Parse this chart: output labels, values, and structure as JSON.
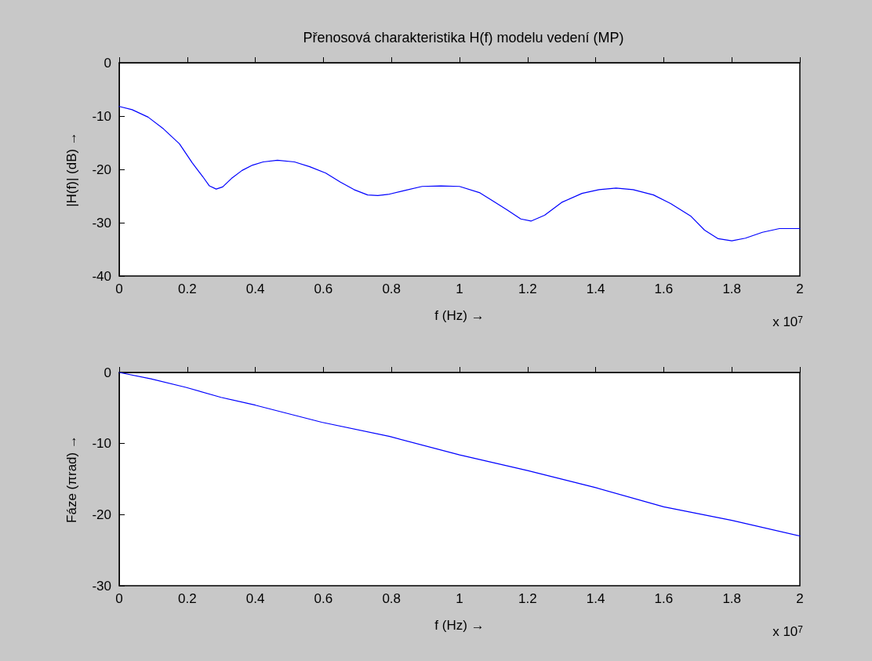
{
  "chart_data": [
    {
      "type": "line",
      "title": "Přenosová charakteristika H(f) modelu vedení (MP)",
      "xlabel": "f (Hz) →",
      "ylabel": "|H(f)| (dB) →",
      "annotations": [
        "x 10$^{7}$"
      ],
      "xlim": [
        0,
        2
      ],
      "xticks": [
        0,
        0.2,
        0.4,
        0.6,
        0.8,
        1,
        1.2,
        1.4,
        1.6,
        1.8,
        2
      ],
      "ylim": [
        -40,
        0
      ],
      "yticks": [
        -40,
        -30,
        -20,
        -10,
        0
      ],
      "marker": "none",
      "line_style": "solid",
      "series": [
        {
          "color": "#0000ff",
          "x": [
            0,
            0.038,
            0.085,
            0.13,
            0.177,
            0.215,
            0.246,
            0.265,
            0.285,
            0.304,
            0.33,
            0.361,
            0.392,
            0.423,
            0.465,
            0.515,
            0.56,
            0.607,
            0.65,
            0.69,
            0.73,
            0.76,
            0.79,
            0.837,
            0.89,
            0.945,
            1.0,
            1.06,
            1.14,
            1.18,
            1.21,
            1.25,
            1.3,
            1.36,
            1.41,
            1.46,
            1.51,
            1.57,
            1.62,
            1.68,
            1.72,
            1.76,
            1.8,
            1.84,
            1.89,
            1.94,
            2.0
          ],
          "values": [
            -8.2,
            -8.8,
            -10.2,
            -12.4,
            -15.2,
            -18.8,
            -21.4,
            -23.1,
            -23.7,
            -23.3,
            -21.7,
            -20.2,
            -19.2,
            -18.6,
            -18.3,
            -18.6,
            -19.5,
            -20.7,
            -22.4,
            -23.8,
            -24.8,
            -24.9,
            -24.7,
            -24,
            -23.2,
            -23.1,
            -23.2,
            -24.4,
            -27.6,
            -29.3,
            -29.7,
            -28.6,
            -26.2,
            -24.5,
            -23.8,
            -23.5,
            -23.8,
            -24.8,
            -26.4,
            -28.8,
            -31.4,
            -33,
            -33.4,
            -32.9,
            -31.8,
            -31.1,
            -31.1
          ]
        }
      ]
    },
    {
      "type": "line",
      "xlabel": "f (Hz) →",
      "ylabel": "Fáze (πrad) →",
      "annotations": [
        "x 10$^{7}$"
      ],
      "xlim": [
        0,
        2
      ],
      "xticks": [
        0,
        0.2,
        0.4,
        0.6,
        0.8,
        1,
        1.2,
        1.4,
        1.6,
        1.8,
        2
      ],
      "ylim": [
        -30,
        0
      ],
      "yticks": [
        -30,
        -20,
        -10,
        0
      ],
      "marker": "none",
      "line_style": "solid",
      "series": [
        {
          "color": "#0000ff",
          "x": [
            0,
            0.093,
            0.196,
            0.299,
            0.4,
            0.595,
            0.795,
            1.0,
            1.2,
            1.4,
            1.6,
            1.8,
            2.0
          ],
          "values": [
            0,
            -0.9,
            -2.1,
            -3.5,
            -4.6,
            -7,
            -9,
            -11.6,
            -13.8,
            -16.2,
            -18.9,
            -20.8,
            -23
          ]
        }
      ]
    }
  ]
}
